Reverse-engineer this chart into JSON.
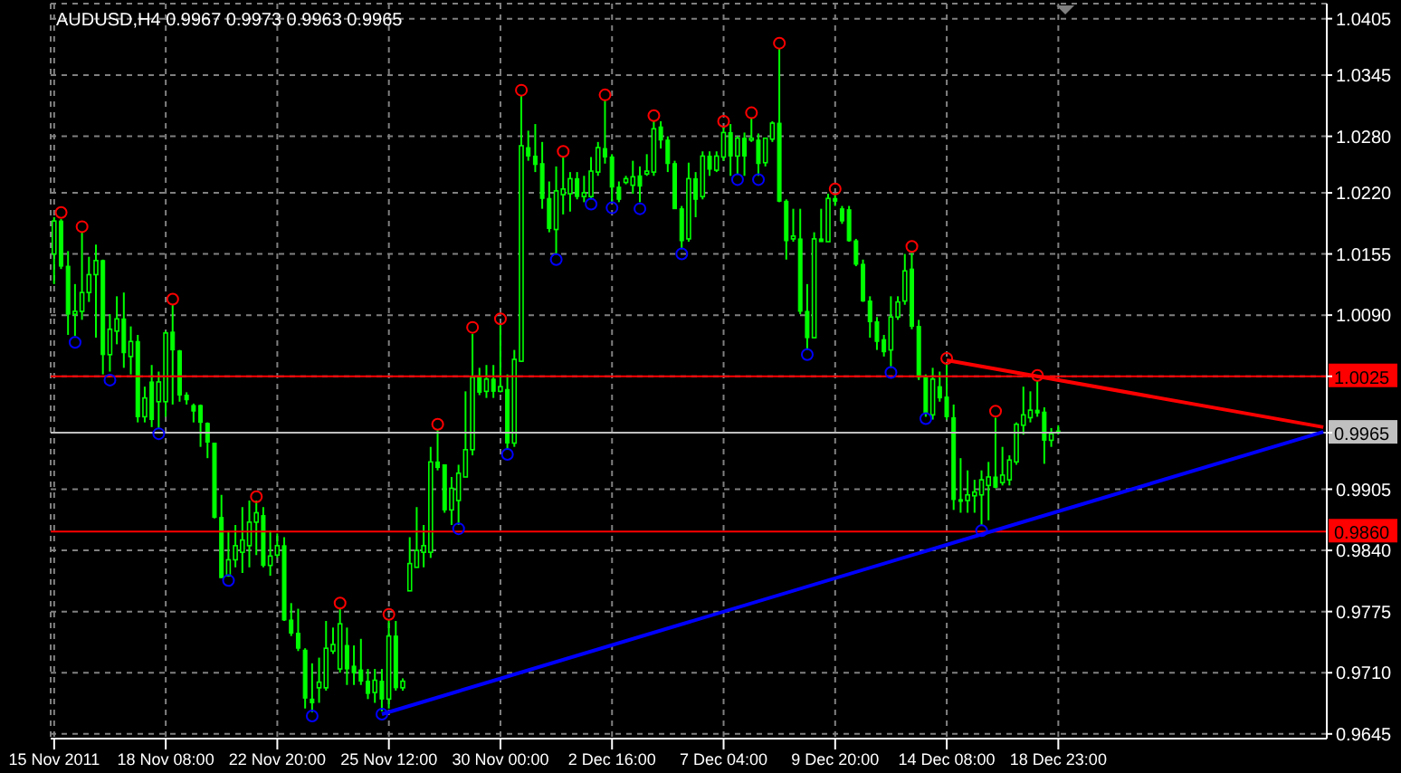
{
  "chart_data": {
    "type": "candlestick",
    "title": "AUDUSD,H4  0.9967 0.9973 0.9963 0.9965",
    "grid": true,
    "categories": [
      "15 Nov 2011",
      null,
      null,
      null,
      null,
      null,
      null,
      null,
      null,
      null,
      null,
      null,
      null,
      null,
      null,
      null,
      "18 Nov 08:00",
      null,
      null,
      null,
      null,
      null,
      null,
      null,
      null,
      null,
      null,
      null,
      null,
      null,
      null,
      null,
      "22 Nov 20:00",
      null,
      null,
      null,
      null,
      null,
      null,
      null,
      null,
      null,
      null,
      null,
      null,
      null,
      null,
      null,
      "25 Nov 12:00",
      null,
      null,
      null,
      null,
      null,
      null,
      null,
      null,
      null,
      null,
      null,
      null,
      null,
      null,
      null,
      "30 Nov 00:00",
      null,
      null,
      null,
      null,
      null,
      null,
      null,
      null,
      null,
      null,
      null,
      null,
      null,
      null,
      null,
      "2 Dec 16:00",
      null,
      null,
      null,
      null,
      null,
      null,
      null,
      null,
      null,
      null,
      null,
      null,
      null,
      null,
      null,
      "7 Dec 04:00",
      null,
      null,
      null,
      null,
      null,
      null,
      null,
      null,
      null,
      null,
      null,
      null,
      null,
      null,
      null,
      "9 Dec 20:00",
      null,
      null,
      null,
      null,
      null,
      null,
      null,
      null,
      null,
      null,
      null,
      null,
      null,
      null,
      null,
      "14 Dec 08:00",
      null,
      null,
      null,
      null,
      null,
      null,
      null,
      null,
      null,
      null,
      null,
      null,
      null,
      null,
      null,
      "18 Dec 23:00",
      null,
      null,
      null,
      null,
      null,
      null,
      null,
      null,
      null,
      null,
      null,
      null,
      null,
      null,
      null,
      null,
      null,
      null,
      null,
      null,
      null,
      null,
      null,
      null,
      null,
      null,
      null,
      null,
      null,
      null,
      null,
      null,
      null,
      null,
      null,
      null,
      null,
      null
    ],
    "ylim": [
      0.964,
      1.0421
    ],
    "yticks": [
      0.9645,
      {
        "value": 0.971,
        "label": "0.9710"
      },
      0.9775,
      {
        "value": 0.984,
        "label": "0.9840"
      },
      0.9905,
      {
        "value": 0.9965,
        "label": null
      },
      {
        "value": 1.0025,
        "label": null
      },
      {
        "value": 1.009,
        "label": "1.0090"
      },
      1.0155,
      {
        "value": 1.022,
        "label": "1.0220"
      },
      {
        "value": 1.028,
        "label": "1.0280"
      },
      1.0345,
      1.0405
    ],
    "ref_lines": [
      {
        "axis": "y",
        "value": 1.0025,
        "label": "1.0025",
        "color": "#ff0000"
      },
      {
        "axis": "y",
        "value": 0.986,
        "label": "0.9860",
        "color": "#ff0000"
      },
      {
        "axis": "y",
        "value": 0.9965,
        "label": "0.9965",
        "color": "#c0c0c0"
      }
    ],
    "series": [
      {
        "type": "line",
        "color": "#0000ff",
        "values": [
          null,
          null,
          null,
          null,
          null,
          null,
          null,
          null,
          null,
          null,
          null,
          null,
          null,
          null,
          null,
          null,
          null,
          null,
          null,
          null,
          null,
          null,
          null,
          null,
          null,
          null,
          null,
          null,
          null,
          null,
          null,
          null,
          null,
          null,
          null,
          null,
          null,
          null,
          null,
          null,
          null,
          null,
          null,
          null,
          null,
          null,
          null,
          0.9666,
          null,
          null,
          null,
          null,
          null,
          null,
          null,
          null,
          null,
          null,
          null,
          null,
          null,
          null,
          null,
          null,
          null,
          null,
          null,
          null,
          null,
          null,
          null,
          null,
          null,
          null,
          null,
          null,
          null,
          null,
          null,
          null,
          null,
          null,
          null,
          null,
          null,
          null,
          null,
          null,
          null,
          null,
          null,
          null,
          null,
          null,
          null,
          null,
          null,
          null,
          null,
          null,
          null,
          null,
          null,
          null,
          null,
          null,
          null,
          null,
          null,
          null,
          null,
          null,
          null,
          null,
          null,
          null,
          null,
          null,
          null,
          null,
          null,
          null,
          null,
          null,
          null,
          null,
          null,
          null,
          null,
          null,
          null,
          null,
          null,
          null,
          null,
          null,
          null,
          null,
          null,
          null,
          null,
          null,
          null,
          null,
          null,
          null,
          null,
          null,
          null,
          null,
          null,
          null,
          null,
          null,
          null,
          null,
          null,
          null,
          null,
          null,
          null,
          null,
          null,
          null,
          null,
          null,
          null,
          null,
          null,
          null,
          null,
          null,
          null,
          null,
          null,
          null,
          null,
          null,
          null,
          null,
          null,
          null,
          0.9966
        ]
      },
      {
        "type": "line",
        "color": "#ff0000",
        "values": [
          null,
          null,
          null,
          null,
          null,
          null,
          null,
          null,
          null,
          null,
          null,
          null,
          null,
          null,
          null,
          null,
          null,
          null,
          null,
          null,
          null,
          null,
          null,
          null,
          null,
          null,
          null,
          null,
          null,
          null,
          null,
          null,
          null,
          null,
          null,
          null,
          null,
          null,
          null,
          null,
          null,
          null,
          null,
          null,
          null,
          null,
          null,
          null,
          null,
          null,
          null,
          null,
          null,
          null,
          null,
          null,
          null,
          null,
          null,
          null,
          null,
          null,
          null,
          null,
          null,
          null,
          null,
          null,
          null,
          null,
          null,
          null,
          null,
          null,
          null,
          null,
          null,
          null,
          null,
          null,
          null,
          null,
          null,
          null,
          null,
          null,
          null,
          null,
          null,
          null,
          null,
          null,
          null,
          null,
          null,
          null,
          null,
          null,
          null,
          null,
          null,
          null,
          null,
          null,
          null,
          null,
          null,
          null,
          null,
          null,
          null,
          null,
          null,
          null,
          null,
          null,
          null,
          null,
          null,
          null,
          null,
          null,
          null,
          null,
          null,
          null,
          null,
          null,
          1.0042,
          null,
          null,
          null,
          null,
          null,
          null,
          null,
          null,
          null,
          null,
          null,
          null,
          null,
          null,
          null,
          null,
          null,
          null,
          null,
          null,
          null,
          null,
          null,
          null,
          null,
          null,
          null,
          null,
          null,
          null,
          null,
          null,
          null,
          null,
          null,
          null,
          null,
          null,
          null,
          null,
          null,
          null,
          null,
          null,
          null,
          null,
          null,
          null,
          null,
          null,
          null,
          null,
          null,
          0.9971
        ]
      },
      {
        "type": "scatter",
        "marker": "circle",
        "color": "#ff0000",
        "values": [
          null,
          1.0199,
          null,
          null,
          1.0184,
          null,
          null,
          null,
          null,
          null,
          null,
          null,
          null,
          null,
          null,
          null,
          null,
          1.0107,
          null,
          null,
          null,
          null,
          null,
          null,
          null,
          null,
          null,
          null,
          null,
          0.9897,
          null,
          null,
          null,
          null,
          null,
          null,
          null,
          null,
          null,
          null,
          null,
          0.9784,
          null,
          null,
          null,
          null,
          null,
          null,
          0.9772,
          null,
          null,
          null,
          null,
          null,
          null,
          0.9974,
          null,
          null,
          null,
          null,
          1.0077,
          null,
          null,
          null,
          1.0086,
          null,
          null,
          1.0329,
          null,
          null,
          null,
          null,
          null,
          1.0264,
          null,
          null,
          null,
          null,
          null,
          1.0324,
          null,
          null,
          null,
          null,
          null,
          null,
          1.0302,
          null,
          null,
          null,
          null,
          null,
          null,
          null,
          null,
          null,
          1.0296,
          null,
          null,
          null,
          1.0305,
          null,
          null,
          null,
          1.0379,
          null,
          null,
          null,
          null,
          null,
          null,
          null,
          1.0224,
          null,
          null,
          null,
          null,
          null,
          null,
          null,
          null,
          null,
          null,
          1.0163,
          null,
          null,
          null,
          null,
          1.0044,
          null,
          null,
          null,
          null,
          null,
          null,
          0.9988,
          null,
          null,
          null,
          null,
          null,
          1.0026,
          null,
          null,
          null,
          null,
          null,
          null,
          null,
          null,
          null,
          null,
          null,
          null,
          null,
          null,
          null,
          null,
          null,
          null,
          null,
          null,
          null,
          null,
          null,
          null,
          null,
          null,
          null,
          null,
          null,
          null,
          null,
          null,
          null,
          null,
          null,
          null,
          null,
          null,
          null,
          null,
          null
        ]
      },
      {
        "type": "scatter",
        "marker": "circle",
        "color": "#0000ff",
        "values": [
          null,
          null,
          null,
          1.0061,
          null,
          null,
          null,
          null,
          1.0021,
          null,
          null,
          null,
          null,
          null,
          null,
          0.9964,
          null,
          null,
          null,
          null,
          null,
          null,
          null,
          null,
          null,
          0.9808,
          null,
          null,
          null,
          null,
          null,
          null,
          null,
          null,
          null,
          null,
          null,
          0.9664,
          null,
          null,
          null,
          null,
          null,
          null,
          null,
          null,
          null,
          0.9666,
          null,
          null,
          null,
          null,
          null,
          null,
          null,
          null,
          null,
          null,
          0.9863,
          null,
          null,
          null,
          null,
          null,
          null,
          0.9942,
          null,
          null,
          null,
          null,
          null,
          null,
          1.0149,
          null,
          null,
          null,
          null,
          1.0208,
          null,
          null,
          1.0204,
          null,
          null,
          null,
          1.0203,
          null,
          null,
          null,
          null,
          null,
          1.0155,
          null,
          null,
          null,
          null,
          null,
          null,
          null,
          1.0234,
          null,
          null,
          1.0234,
          null,
          null,
          null,
          null,
          null,
          null,
          1.0048,
          null,
          null,
          null,
          null,
          null,
          null,
          null,
          null,
          null,
          null,
          null,
          1.0029,
          null,
          null,
          null,
          null,
          0.998,
          null,
          null,
          null,
          null,
          null,
          null,
          null,
          0.9861,
          null,
          null,
          null,
          null,
          null,
          null,
          null,
          null,
          null,
          null,
          null,
          null,
          null,
          null,
          null,
          null,
          null,
          null,
          null,
          null,
          null,
          null,
          null,
          null,
          null,
          null,
          null,
          null,
          null,
          null,
          null,
          null,
          null,
          null,
          null,
          null,
          null,
          null,
          null,
          null,
          null,
          null,
          null,
          null,
          null,
          null,
          null,
          null,
          null
        ]
      },
      {
        "color": "#00ff00",
        "ohlc": [
          [
            1.0155,
            1.0194,
            1.0123,
            1.019
          ],
          [
            1.019,
            1.0192,
            1.0139,
            1.0142
          ],
          [
            1.0142,
            1.0158,
            1.0069,
            1.0091
          ],
          [
            1.0091,
            1.0123,
            1.0068,
            1.0094
          ],
          [
            1.0094,
            1.0178,
            1.0085,
            1.0114
          ],
          [
            1.0114,
            1.0152,
            1.0104,
            1.0133
          ],
          [
            1.0133,
            1.0165,
            1.0066,
            1.0148
          ],
          [
            1.0148,
            1.0149,
            1.0027,
            1.0048
          ],
          [
            1.0048,
            1.0091,
            1.003,
            1.0075
          ],
          [
            1.0073,
            1.011,
            1.0059,
            1.0086
          ],
          [
            1.0086,
            1.0114,
            1.0034,
            1.005
          ],
          [
            1.0046,
            1.0078,
            1.0027,
            1.0062
          ],
          [
            1.0062,
            1.0069,
            0.9976,
            0.9982
          ],
          [
            0.9982,
            1.0014,
            0.9976,
            1.0002
          ],
          [
            1.0019,
            1.0037,
            0.9971,
            0.9979
          ],
          [
            0.9998,
            1.003,
            0.997,
            1.0019
          ],
          [
            0.9998,
            1.0073,
            0.9982,
            1.0071
          ],
          [
            1.0072,
            1.0101,
            0.9995,
            1.0053
          ],
          [
            1.0052,
            1.0053,
            0.9998,
            1.0005
          ],
          [
            1.0005,
            1.0008,
            0.9995,
            1
          ],
          [
            0.9994,
            0.9996,
            0.9976,
            0.9988
          ],
          [
            0.9994,
            0.9995,
            0.995,
            0.9976
          ],
          [
            0.9975,
            0.9976,
            0.9938,
            0.9955
          ],
          [
            0.9954,
            0.9954,
            0.9874,
            0.9875
          ],
          [
            0.9875,
            0.9899,
            0.9811,
            0.9811
          ],
          [
            0.9813,
            0.9861,
            0.9812,
            0.983
          ],
          [
            0.983,
            0.9867,
            0.9822,
            0.9845
          ],
          [
            0.9838,
            0.9886,
            0.9816,
            0.9851
          ],
          [
            0.9845,
            0.9893,
            0.9822,
            0.987
          ],
          [
            0.987,
            0.9893,
            0.9835,
            0.988
          ],
          [
            0.9877,
            0.9886,
            0.9822,
            0.9824
          ],
          [
            0.9824,
            0.9861,
            0.9813,
            0.9834
          ],
          [
            0.9835,
            0.9858,
            0.9832,
            0.9845
          ],
          [
            0.9845,
            0.9854,
            0.9765,
            0.9766
          ],
          [
            0.9766,
            0.9784,
            0.9749,
            0.9752
          ],
          [
            0.9752,
            0.9778,
            0.9733,
            0.9736
          ],
          [
            0.9734,
            0.9736,
            0.9672,
            0.9683
          ],
          [
            0.9682,
            0.972,
            0.9668,
            0.9678
          ],
          [
            0.9694,
            0.9726,
            0.9678,
            0.97
          ],
          [
            0.9694,
            0.9765,
            0.9691,
            0.9736
          ],
          [
            0.9733,
            0.9758,
            0.973,
            0.974
          ],
          [
            0.9714,
            0.9778,
            0.971,
            0.9762
          ],
          [
            0.9739,
            0.9758,
            0.9697,
            0.9714
          ],
          [
            0.9717,
            0.9739,
            0.9697,
            0.971
          ],
          [
            0.9713,
            0.9746,
            0.9697,
            0.9701
          ],
          [
            0.9701,
            0.9714,
            0.9682,
            0.9688
          ],
          [
            0.9689,
            0.9714,
            0.9678,
            0.9702
          ],
          [
            0.9701,
            0.9714,
            0.9669,
            0.9682
          ],
          [
            0.9682,
            0.9766,
            0.9672,
            0.9749
          ],
          [
            0.9749,
            0.9765,
            0.9691,
            0.9694
          ],
          [
            0.9694,
            0.9704,
            0.9691,
            0.9701
          ],
          [
            0.9797,
            0.9854,
            0.9797,
            0.9826
          ],
          [
            0.9822,
            0.9886,
            0.9822,
            0.984
          ],
          [
            0.9838,
            0.9867,
            0.9822,
            0.9845
          ],
          [
            0.9838,
            0.995,
            0.9832,
            0.9934
          ],
          [
            0.9934,
            0.9968,
            0.9925,
            0.9928
          ],
          [
            0.9931,
            0.9931,
            0.988,
            0.9883
          ],
          [
            0.9883,
            0.9918,
            0.9867,
            0.9906
          ],
          [
            0.9893,
            0.9931,
            0.9867,
            0.9922
          ],
          [
            0.9918,
            1.0009,
            0.9918,
            0.9947
          ],
          [
            0.9947,
            1.007,
            0.9941,
            1.0024
          ],
          [
            1.0024,
            1.0034,
            1.0005,
            1.0008
          ],
          [
            1.0009,
            1.0037,
            1.0002,
            1.0022
          ],
          [
            1.0022,
            1.0037,
            1.0002,
            1.0009
          ],
          [
            1.0009,
            1.008,
            1.0008,
            1.0014
          ],
          [
            1.0011,
            1.0027,
            0.9947,
            0.9954
          ],
          [
            0.9954,
            1.0053,
            0.995,
            1.0043
          ],
          [
            1.0041,
            1.0323,
            1.004,
            1.027
          ],
          [
            1.0268,
            1.0286,
            1.0254,
            1.0259
          ],
          [
            1.0259,
            1.0293,
            1.0242,
            1.025
          ],
          [
            1.0251,
            1.0274,
            1.0203,
            1.0214
          ],
          [
            1.0214,
            1.0232,
            1.0178,
            1.0182
          ],
          [
            1.0181,
            1.0248,
            1.0155,
            1.0222
          ],
          [
            1.0218,
            1.0258,
            1.0197,
            1.0224
          ],
          [
            1.0219,
            1.0242,
            1.02,
            1.0235
          ],
          [
            1.0235,
            1.0242,
            1.0213,
            1.0216
          ],
          [
            1.0216,
            1.0238,
            1.021,
            1.022
          ],
          [
            1.0216,
            1.0258,
            1.0213,
            1.0243
          ],
          [
            1.0242,
            1.0274,
            1.0238,
            1.0268
          ],
          [
            1.0267,
            1.0318,
            1.0251,
            1.0258
          ],
          [
            1.0258,
            1.0261,
            1.021,
            1.0226
          ],
          [
            1.0226,
            1.0232,
            1.021,
            1.0213
          ],
          [
            1.0231,
            1.0238,
            1.0229,
            1.0235
          ],
          [
            1.0228,
            1.0254,
            1.0219,
            1.0237
          ],
          [
            1.0238,
            1.0248,
            1.021,
            1.0227
          ],
          [
            1.024,
            1.0261,
            1.0238,
            1.0243
          ],
          [
            1.0242,
            1.0296,
            1.0238,
            1.0288
          ],
          [
            1.029,
            1.0296,
            1.0267,
            1.0276
          ],
          [
            1.0276,
            1.028,
            1.0242,
            1.0251
          ],
          [
            1.0251,
            1.0254,
            1.0203,
            1.0203
          ],
          [
            1.0203,
            1.0206,
            1.016,
            1.0169
          ],
          [
            1.0171,
            1.0252,
            1.0168,
            1.0235
          ],
          [
            1.0235,
            1.0242,
            1.0194,
            1.0213
          ],
          [
            1.0216,
            1.0264,
            1.0213,
            1.0259
          ],
          [
            1.0259,
            1.0264,
            1.0238,
            1.0245
          ],
          [
            1.0244,
            1.0264,
            1.0242,
            1.0259
          ],
          [
            1.0258,
            1.0291,
            1.0254,
            1.0284
          ],
          [
            1.0284,
            1.0293,
            1.0238,
            1.0259
          ],
          [
            1.0259,
            1.028,
            1.024,
            1.0278
          ],
          [
            1.0278,
            1.0284,
            1.0238,
            1.0259
          ],
          [
            1.0276,
            1.0299,
            1.0274,
            1.0278
          ],
          [
            1.0276,
            1.0283,
            1.0238,
            1.0251
          ],
          [
            1.0252,
            1.0278,
            1.0248,
            1.0278
          ],
          [
            1.0277,
            1.0296,
            1.0274,
            1.0294
          ],
          [
            1.0294,
            1.0373,
            1.021,
            1.0211
          ],
          [
            1.0211,
            1.0213,
            1.0149,
            1.0169
          ],
          [
            1.0171,
            1.0203,
            1.0168,
            1.0174
          ],
          [
            1.0171,
            1.0203,
            1.0091,
            1.0094
          ],
          [
            1.0094,
            1.0123,
            1.0053,
            1.0066
          ],
          [
            1.0066,
            1.0178,
            1.0066,
            1.0171
          ],
          [
            1.0171,
            1.0203,
            1.0168,
            1.0168
          ],
          [
            1.0168,
            1.0219,
            1.0168,
            1.0214
          ],
          [
            1.0214,
            1.0219,
            1.0206,
            1.0211
          ],
          [
            1.0203,
            1.0206,
            1.0187,
            1.019
          ],
          [
            1.0202,
            1.0206,
            1.0168,
            1.0169
          ],
          [
            1.0169,
            1.0171,
            1.0142,
            1.0144
          ],
          [
            1.0144,
            1.0149,
            1.0104,
            1.0105
          ],
          [
            1.0105,
            1.011,
            1.0066,
            1.0083
          ],
          [
            1.0083,
            1.0088,
            1.0053,
            1.0062
          ],
          [
            1.0064,
            1.0069,
            1.0046,
            1.0051
          ],
          [
            1.0053,
            1.011,
            1.0034,
            1.0088
          ],
          [
            1.0088,
            1.011,
            1.0085,
            1.0104
          ],
          [
            1.0105,
            1.0155,
            1.0101,
            1.0137
          ],
          [
            1.0139,
            1.0156,
            1.0075,
            1.0078
          ],
          [
            1.0078,
            1.0085,
            1.0021,
            1.0024
          ],
          [
            1.0024,
            1.0027,
            0.9982,
            0.9986
          ],
          [
            0.9984,
            1.0034,
            0.9979,
            1.0022
          ],
          [
            1.0014,
            1.003,
            0.9998,
            1.0002
          ],
          [
            1.0003,
            1.0038,
            0.9979,
            0.9982
          ],
          [
            0.9981,
            0.9995,
            0.9883,
            0.9894
          ],
          [
            0.9894,
            0.9938,
            0.988,
            0.9892
          ],
          [
            0.9893,
            0.9925,
            0.988,
            0.9899
          ],
          [
            0.9898,
            0.9915,
            0.988,
            0.9902
          ],
          [
            0.9899,
            0.9925,
            0.9867,
            0.9915
          ],
          [
            0.9909,
            0.9934,
            0.9872,
            0.9918
          ],
          [
            0.9918,
            0.9981,
            0.9906,
            0.9907
          ],
          [
            0.9912,
            0.995,
            0.9909,
            0.992
          ],
          [
            0.9915,
            0.9941,
            0.9909,
            0.9936
          ],
          [
            0.9934,
            0.9976,
            0.9931,
            0.9974
          ],
          [
            0.9973,
            1.0014,
            0.9963,
            0.9984
          ],
          [
            0.9981,
            1.0009,
            0.9976,
            0.9989
          ],
          [
            0.9989,
            1.002,
            0.9982,
            0.9986
          ],
          [
            0.9987,
            0.9992,
            0.9932,
            0.9957
          ],
          [
            0.9957,
            0.997,
            0.995,
            0.9964
          ],
          [
            0.9967,
            0.9973,
            0.9963,
            0.9965
          ],
          null,
          null,
          null,
          null,
          null,
          null,
          null,
          null,
          null,
          null,
          null,
          null,
          null,
          null,
          null,
          null,
          null,
          null,
          null,
          null,
          null,
          null,
          null,
          null,
          null,
          null,
          null,
          null,
          null,
          null,
          null,
          null,
          null,
          null,
          null,
          null,
          null,
          null
        ]
      }
    ]
  }
}
